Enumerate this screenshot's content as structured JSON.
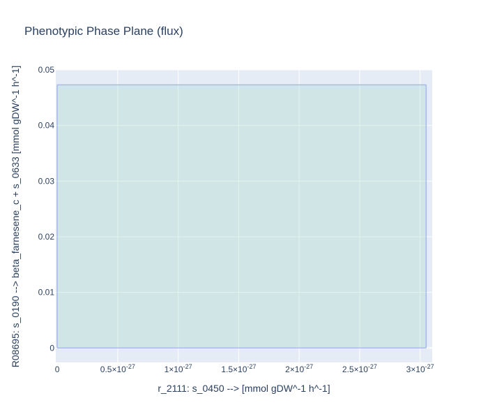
{
  "chart_data": {
    "type": "area",
    "title": "Phenotypic Phase Plane (flux)",
    "xlabel": "r_2111: s_0450 -->  [mmol gDW^-1 h^-1]",
    "ylabel": "R08695: s_0190 --> beta_farnesene_c + s_0633 [mmol gDW^-1 h^-1]",
    "xlim": [
      -1.2e-29,
      3.1e-27
    ],
    "ylim": [
      -0.0026,
      0.05
    ],
    "x_ticks": [
      {
        "value": 0,
        "label": "0"
      },
      {
        "value": 5e-28,
        "label": "0.5×10^-27"
      },
      {
        "value": 1e-27,
        "label": "1×10^-27"
      },
      {
        "value": 1.5e-27,
        "label": "1.5×10^-27"
      },
      {
        "value": 2e-27,
        "label": "2×10^-27"
      },
      {
        "value": 2.5e-27,
        "label": "2.5×10^-27"
      },
      {
        "value": 3e-27,
        "label": "3×10^-27"
      }
    ],
    "y_ticks": [
      {
        "value": 0,
        "label": "0"
      },
      {
        "value": 0.01,
        "label": "0.01"
      },
      {
        "value": 0.02,
        "label": "0.02"
      },
      {
        "value": 0.03,
        "label": "0.03"
      },
      {
        "value": 0.04,
        "label": "0.04"
      },
      {
        "value": 0.05,
        "label": "0.05"
      }
    ],
    "region": {
      "x": [
        0,
        3.05e-27,
        3.05e-27,
        0
      ],
      "y_max": 0.0473,
      "y_min": 0
    },
    "grid": true,
    "colors": {
      "plot_bg": "#e5ecf6",
      "grid": "#ffffff",
      "fill": "rgba(170,220,200,0.35)",
      "line": "#a9b8f2",
      "text": "#2a3f5f"
    }
  }
}
